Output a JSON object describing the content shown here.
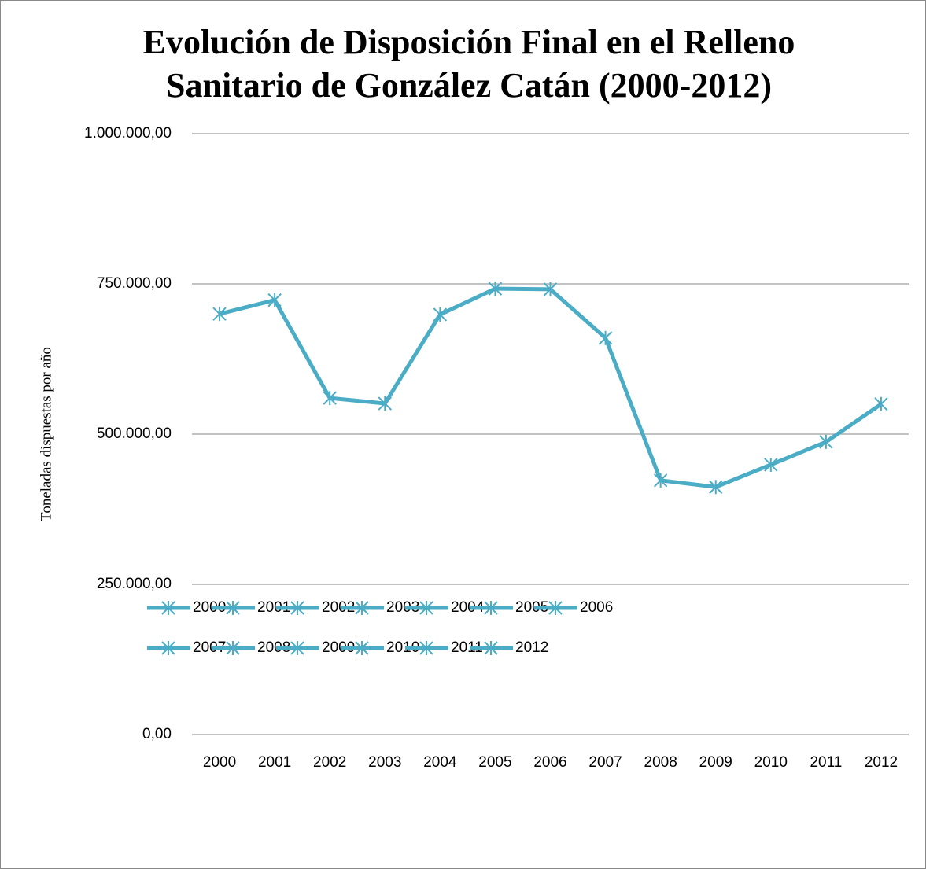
{
  "chart_data": {
    "type": "line",
    "title": [
      "Evolución de Disposición Final en el Relleno",
      "Sanitario de González Catán (2000-2012)"
    ],
    "y_label": "Toneladas dispuestas por año",
    "categories": [
      "2000",
      "2001",
      "2002",
      "2003",
      "2004",
      "2005",
      "2006",
      "2007",
      "2008",
      "2009",
      "2010",
      "2011",
      "2012"
    ],
    "values": [
      700000,
      723000,
      560000,
      551000,
      699000,
      742000,
      741000,
      660000,
      423000,
      412000,
      449000,
      487000,
      550000
    ],
    "color": "#4bacc6",
    "ylim": [
      0,
      1000000
    ],
    "yticks": [
      {
        "value": 0,
        "label": "0,00"
      },
      {
        "value": 250000,
        "label": "250.000,00"
      },
      {
        "value": 500000,
        "label": "500.000,00"
      },
      {
        "value": 750000,
        "label": "750.000,00"
      },
      {
        "value": 1000000,
        "label": "1.000.000,00"
      }
    ],
    "grid": true,
    "legend": "bottom"
  }
}
